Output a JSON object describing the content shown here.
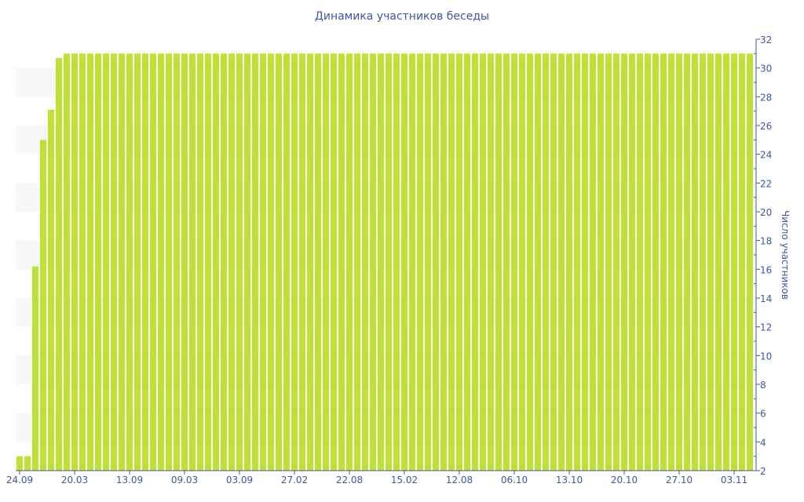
{
  "chart_data": {
    "type": "bar",
    "title": "Динамика участников беседы",
    "xlabel": "",
    "ylabel": "Число участников",
    "ylim": [
      2,
      32
    ],
    "y_ticks": [
      2,
      4,
      6,
      8,
      10,
      12,
      14,
      16,
      18,
      20,
      22,
      24,
      26,
      28,
      30,
      32
    ],
    "y_axis_position": "right",
    "x_tick_labels": [
      "24.09",
      "20.03",
      "13.09",
      "09.03",
      "03.09",
      "27.02",
      "22.08",
      "15.02",
      "12.08",
      "06.10",
      "13.10",
      "20.10",
      "27.10",
      "03.11"
    ],
    "x_tick_every_n_bars": 7,
    "values": [
      3,
      3,
      16.2,
      25,
      27.1,
      30.7,
      31,
      31,
      31,
      31,
      31,
      31,
      31,
      31,
      31,
      31,
      31,
      31,
      31,
      31,
      31,
      31,
      31,
      31,
      31,
      31,
      31,
      31,
      31,
      31,
      31,
      31,
      31,
      31,
      31,
      31,
      31,
      31,
      31,
      31,
      31,
      31,
      31,
      31,
      31,
      31,
      31,
      31,
      31,
      31,
      31,
      31,
      31,
      31,
      31,
      31,
      31,
      31,
      31,
      31,
      31,
      31,
      31,
      31,
      31,
      31,
      31,
      31,
      31,
      31,
      31,
      31,
      31,
      31,
      31,
      31,
      31,
      31,
      31,
      31,
      31,
      31,
      31,
      31,
      31,
      31,
      31,
      31,
      31,
      31,
      31,
      31,
      31,
      31
    ],
    "grid": "alternating bands",
    "bar_color": "#bde234",
    "axis_color": "#3d57a5",
    "band_color": "#f7f7f7"
  }
}
